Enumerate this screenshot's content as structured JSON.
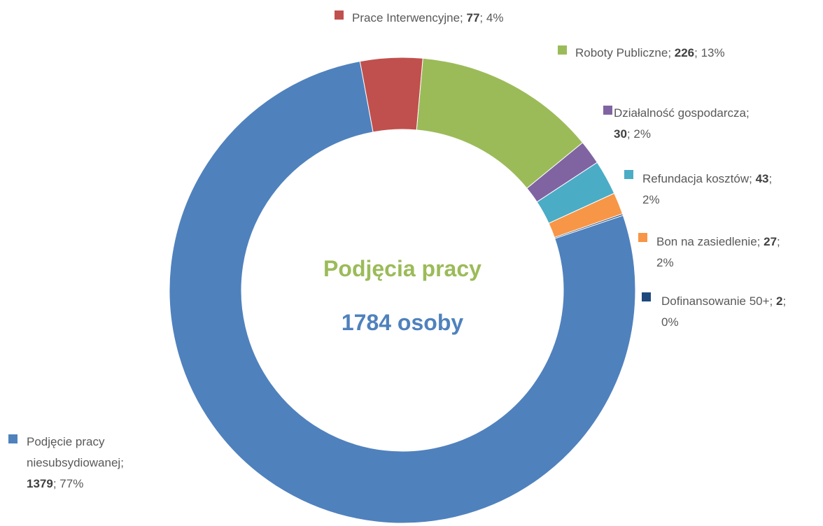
{
  "chart_data": {
    "type": "donut",
    "center_title": "Podjęcia pracy",
    "center_subtitle": "1784 osoby",
    "categories": [
      "Prace Interwencyjne",
      "Roboty Publiczne",
      "Działalność gospodarcza",
      "Refundacja kosztów",
      "Bon na zasiedlenie",
      "Dofinansowanie 50+",
      "Podjęcie pracy niesubsydiowanej"
    ],
    "values": [
      77,
      226,
      30,
      43,
      27,
      2,
      1379
    ],
    "percent_labels": [
      "4%",
      "13%",
      "2%",
      "2%",
      "2%",
      "0%",
      "77%"
    ],
    "colors": [
      "#c0504d",
      "#9bbb59",
      "#8064a2",
      "#4bacc6",
      "#f79646",
      "#1f497d",
      "#4f81bd"
    ]
  }
}
